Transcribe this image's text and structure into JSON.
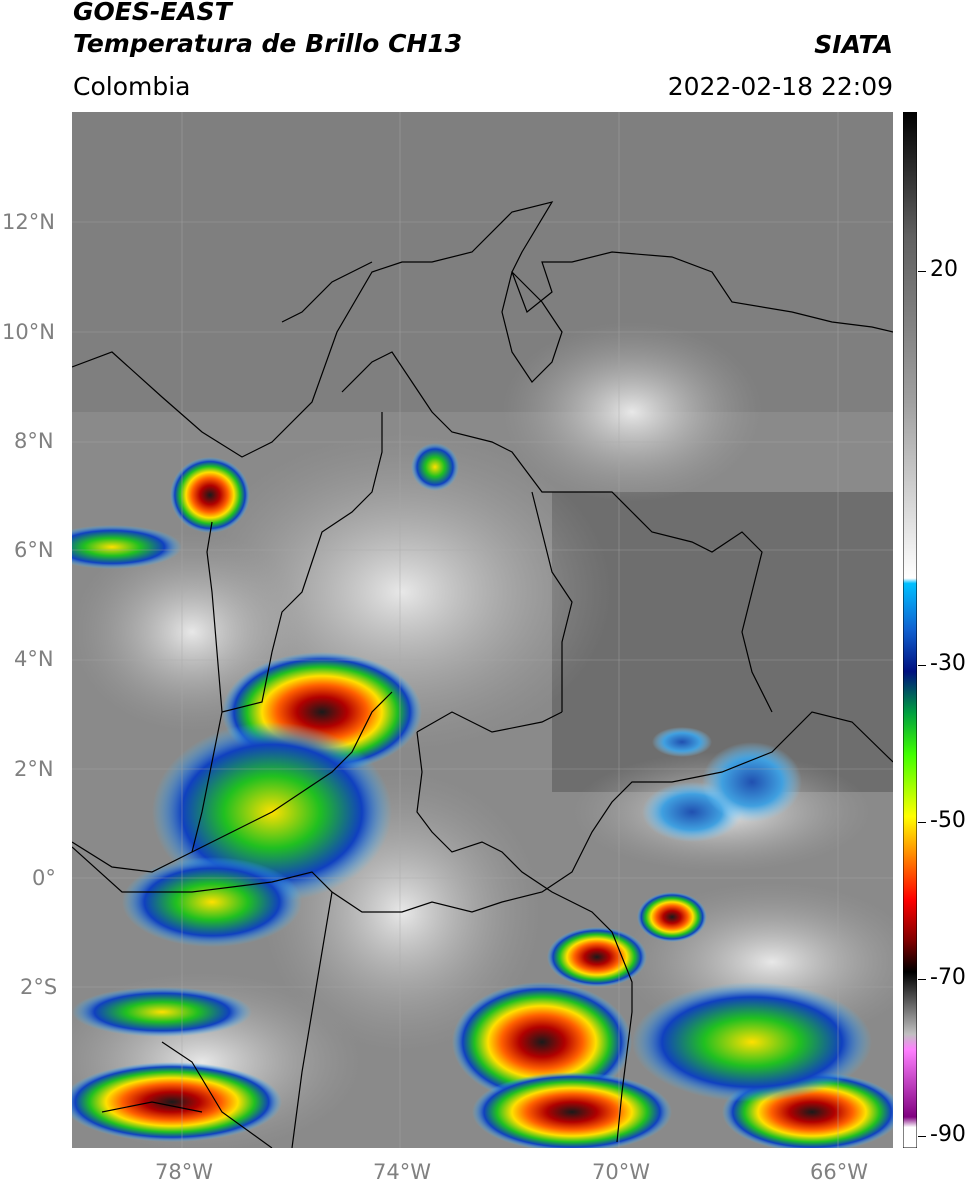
{
  "header": {
    "satellite": "GOES-EAST",
    "product": "Temperatura de Brillo CH13",
    "region": "Colombia",
    "organization": "SIATA",
    "datetime": "2022-02-18 22:09"
  },
  "axes": {
    "lat_labels": [
      "12°N",
      "10°N",
      "8°N",
      "6°N",
      "4°N",
      "2°N",
      "0°",
      "2°S"
    ],
    "lon_labels": [
      "78°W",
      "74°W",
      "70°W",
      "66°W"
    ]
  },
  "colorbar": {
    "labels": [
      "20",
      "-30",
      "-50",
      "-70",
      "-90"
    ]
  }
}
